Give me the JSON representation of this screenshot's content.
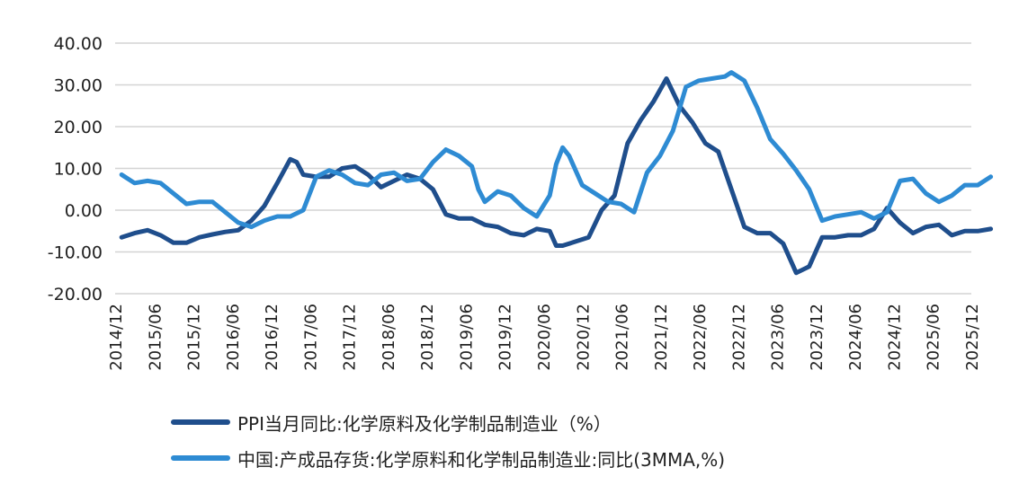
{
  "chart_data": {
    "type": "line",
    "ylim": [
      -20,
      40
    ],
    "ytick_labels": [
      "40.00",
      "30.00",
      "20.00",
      "10.00",
      "0.00",
      "-10.00",
      "-20.00"
    ],
    "xtick_labels": [
      "2014/12",
      "2015/06",
      "2015/12",
      "2016/06",
      "2016/12",
      "2017/06",
      "2017/12",
      "2018/06",
      "2018/12",
      "2019/06",
      "2019/12",
      "2020/06",
      "2020/12",
      "2021/06",
      "2021/12",
      "2022/06",
      "2022/12",
      "2023/06",
      "2023/12",
      "2024/06",
      "2024/12",
      "2025/06",
      "2025/12"
    ],
    "grid": true,
    "legend_position": "bottom",
    "series": [
      {
        "name": "PPI当月同比:化学原料及化学制品制造业（%）",
        "color": "#1f4e8c",
        "points": [
          [
            "2015/01",
            -6.5
          ],
          [
            "2015/03",
            -5.5
          ],
          [
            "2015/05",
            -4.8
          ],
          [
            "2015/07",
            -6.0
          ],
          [
            "2015/09",
            -7.8
          ],
          [
            "2015/11",
            -7.8
          ],
          [
            "2016/01",
            -6.5
          ],
          [
            "2016/03",
            -5.8
          ],
          [
            "2016/05",
            -5.2
          ],
          [
            "2016/07",
            -4.8
          ],
          [
            "2016/09",
            -2.5
          ],
          [
            "2016/11",
            1.0
          ],
          [
            "2017/01",
            6.5
          ],
          [
            "2017/03",
            12.2
          ],
          [
            "2017/04",
            11.5
          ],
          [
            "2017/05",
            8.5
          ],
          [
            "2017/07",
            8.0
          ],
          [
            "2017/09",
            8.0
          ],
          [
            "2017/11",
            10.0
          ],
          [
            "2018/01",
            10.5
          ],
          [
            "2018/03",
            8.5
          ],
          [
            "2018/05",
            5.5
          ],
          [
            "2018/07",
            7.0
          ],
          [
            "2018/09",
            8.5
          ],
          [
            "2018/11",
            7.5
          ],
          [
            "2019/01",
            5.0
          ],
          [
            "2019/03",
            -1.0
          ],
          [
            "2019/05",
            -2.0
          ],
          [
            "2019/07",
            -2.0
          ],
          [
            "2019/09",
            -3.5
          ],
          [
            "2019/11",
            -4.0
          ],
          [
            "2020/01",
            -5.5
          ],
          [
            "2020/03",
            -6.0
          ],
          [
            "2020/05",
            -4.5
          ],
          [
            "2020/07",
            -5.0
          ],
          [
            "2020/08",
            -8.5
          ],
          [
            "2020/09",
            -8.5
          ],
          [
            "2020/11",
            -7.5
          ],
          [
            "2021/01",
            -6.5
          ],
          [
            "2021/03",
            0.0
          ],
          [
            "2021/05",
            3.5
          ],
          [
            "2021/07",
            16.0
          ],
          [
            "2021/09",
            21.5
          ],
          [
            "2021/11",
            26.0
          ],
          [
            "2022/01",
            31.5
          ],
          [
            "2022/03",
            25.0
          ],
          [
            "2022/05",
            21.0
          ],
          [
            "2022/07",
            16.0
          ],
          [
            "2022/09",
            14.0
          ],
          [
            "2022/11",
            5.0
          ],
          [
            "2023/01",
            -4.0
          ],
          [
            "2023/03",
            -5.5
          ],
          [
            "2023/05",
            -5.5
          ],
          [
            "2023/07",
            -8.0
          ],
          [
            "2023/09",
            -15.0
          ],
          [
            "2023/11",
            -13.5
          ],
          [
            "2024/01",
            -6.5
          ],
          [
            "2024/03",
            -6.5
          ],
          [
            "2024/05",
            -6.0
          ],
          [
            "2024/07",
            -6.0
          ],
          [
            "2024/09",
            -4.5
          ],
          [
            "2024/11",
            0.5
          ],
          [
            "2025/01",
            -3.0
          ],
          [
            "2025/03",
            -5.5
          ],
          [
            "2025/05",
            -4.0
          ],
          [
            "2025/07",
            -3.5
          ],
          [
            "2025/09",
            -6.0
          ],
          [
            "2025/11",
            -5.0
          ],
          [
            "2026/01",
            -5.0
          ],
          [
            "2026/03",
            -4.5
          ]
        ]
      },
      {
        "name": "中国:产成品存货:化学原料和化学制品制造业:同比(3MMA,%)",
        "color": "#2e8bd3",
        "points": [
          [
            "2015/01",
            8.5
          ],
          [
            "2015/03",
            6.5
          ],
          [
            "2015/05",
            7.0
          ],
          [
            "2015/07",
            6.5
          ],
          [
            "2015/09",
            4.0
          ],
          [
            "2015/11",
            1.5
          ],
          [
            "2016/01",
            2.0
          ],
          [
            "2016/03",
            2.0
          ],
          [
            "2016/05",
            -0.5
          ],
          [
            "2016/07",
            -3.0
          ],
          [
            "2016/09",
            -4.0
          ],
          [
            "2016/11",
            -2.5
          ],
          [
            "2017/01",
            -1.5
          ],
          [
            "2017/03",
            -1.5
          ],
          [
            "2017/05",
            0.0
          ],
          [
            "2017/07",
            8.0
          ],
          [
            "2017/09",
            9.5
          ],
          [
            "2017/11",
            8.5
          ],
          [
            "2018/01",
            6.5
          ],
          [
            "2018/03",
            6.0
          ],
          [
            "2018/05",
            8.5
          ],
          [
            "2018/07",
            9.0
          ],
          [
            "2018/09",
            7.0
          ],
          [
            "2018/11",
            7.5
          ],
          [
            "2019/01",
            11.5
          ],
          [
            "2019/03",
            14.5
          ],
          [
            "2019/05",
            13.0
          ],
          [
            "2019/07",
            10.5
          ],
          [
            "2019/08",
            5.0
          ],
          [
            "2019/09",
            2.0
          ],
          [
            "2019/11",
            4.5
          ],
          [
            "2020/01",
            3.5
          ],
          [
            "2020/03",
            0.5
          ],
          [
            "2020/05",
            -1.5
          ],
          [
            "2020/07",
            3.5
          ],
          [
            "2020/08",
            11.0
          ],
          [
            "2020/09",
            15.0
          ],
          [
            "2020/10",
            13.0
          ],
          [
            "2020/12",
            6.0
          ],
          [
            "2021/02",
            4.0
          ],
          [
            "2021/04",
            2.0
          ],
          [
            "2021/06",
            1.5
          ],
          [
            "2021/08",
            -0.5
          ],
          [
            "2021/10",
            9.0
          ],
          [
            "2021/12",
            13.0
          ],
          [
            "2022/02",
            19.0
          ],
          [
            "2022/04",
            29.5
          ],
          [
            "2022/06",
            31.0
          ],
          [
            "2022/08",
            31.5
          ],
          [
            "2022/10",
            32.0
          ],
          [
            "2022/11",
            33.0
          ],
          [
            "2023/01",
            31.0
          ],
          [
            "2023/03",
            24.5
          ],
          [
            "2023/05",
            17.0
          ],
          [
            "2023/07",
            13.5
          ],
          [
            "2023/09",
            9.5
          ],
          [
            "2023/11",
            5.0
          ],
          [
            "2024/01",
            -2.5
          ],
          [
            "2024/03",
            -1.5
          ],
          [
            "2024/05",
            -1.0
          ],
          [
            "2024/07",
            -0.5
          ],
          [
            "2024/09",
            -2.0
          ],
          [
            "2024/11",
            -0.5
          ],
          [
            "2025/01",
            7.0
          ],
          [
            "2025/03",
            7.5
          ],
          [
            "2025/05",
            4.0
          ],
          [
            "2025/07",
            2.0
          ],
          [
            "2025/09",
            3.5
          ],
          [
            "2025/11",
            6.0
          ],
          [
            "2026/01",
            6.0
          ],
          [
            "2026/03",
            8.0
          ]
        ]
      }
    ]
  }
}
